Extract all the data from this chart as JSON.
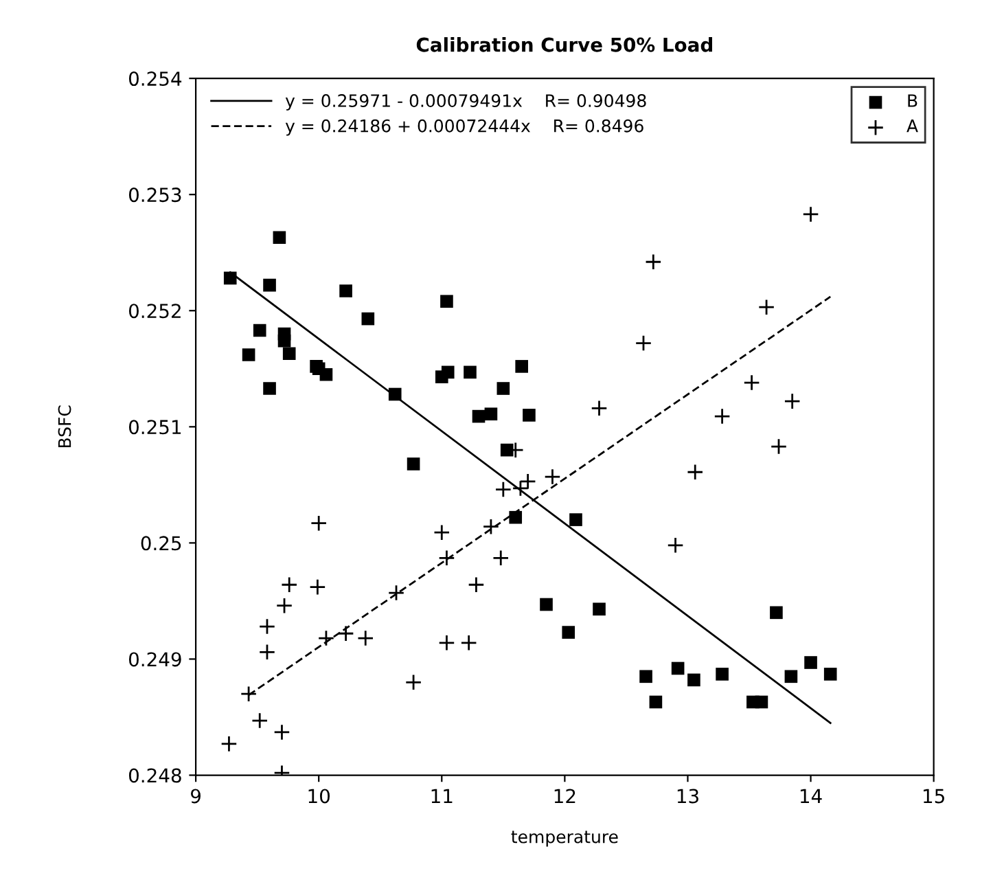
{
  "chart_data": {
    "type": "scatter",
    "title": "Calibration Curve 50% Load",
    "xlabel": "temperature",
    "ylabel": "BSFC",
    "xlim": [
      9,
      15
    ],
    "xticks": [
      9,
      10,
      11,
      12,
      13,
      14,
      15
    ],
    "ylim": [
      0.248,
      0.254
    ],
    "yticks": [
      0.248,
      0.249,
      0.25,
      0.251,
      0.252,
      0.253,
      0.254
    ],
    "grid": false,
    "legend": "top right",
    "series": [
      {
        "name": "B",
        "marker": "square",
        "color": "#000000",
        "x": [
          9.28,
          9.43,
          9.52,
          9.6,
          9.6,
          9.68,
          9.72,
          9.72,
          9.76,
          9.98,
          10.0,
          10.06,
          10.22,
          10.4,
          10.62,
          10.77,
          11.0,
          11.04,
          11.05,
          11.23,
          11.3,
          11.4,
          11.5,
          11.53,
          11.6,
          11.65,
          11.71,
          12.09,
          11.85,
          12.03,
          12.28,
          12.66,
          12.74,
          12.92,
          13.05,
          13.28,
          13.53,
          13.6,
          13.72,
          13.84,
          14.0,
          14.16
        ],
        "values": [
          0.25228,
          0.25162,
          0.25183,
          0.25133,
          0.25222,
          0.25263,
          0.2518,
          0.25174,
          0.25163,
          0.25152,
          0.2515,
          0.25145,
          0.25217,
          0.25193,
          0.25128,
          0.25068,
          0.25143,
          0.25208,
          0.25147,
          0.25147,
          0.25109,
          0.25111,
          0.25133,
          0.2508,
          0.25022,
          0.25152,
          0.2511,
          0.2502,
          0.24947,
          0.24923,
          0.24943,
          0.24885,
          0.24863,
          0.24892,
          0.24882,
          0.24887,
          0.24863,
          0.24863,
          0.2494,
          0.24885,
          0.24897,
          0.24887
        ]
      },
      {
        "name": "A",
        "marker": "cross",
        "color": "#000000",
        "x": [
          9.27,
          9.43,
          9.52,
          9.58,
          9.58,
          9.7,
          9.7,
          9.72,
          9.76,
          9.99,
          10.0,
          10.06,
          10.22,
          10.38,
          10.63,
          10.77,
          11.0,
          11.04,
          11.04,
          11.22,
          11.28,
          11.4,
          11.48,
          11.5,
          11.6,
          11.64,
          11.7,
          11.9,
          12.28,
          12.64,
          12.72,
          12.9,
          13.06,
          13.28,
          13.52,
          13.64,
          13.74,
          13.85,
          14.0
        ],
        "values": [
          0.24827,
          0.2487,
          0.24847,
          0.24906,
          0.24928,
          0.24837,
          0.24802,
          0.24946,
          0.24964,
          0.24962,
          0.25017,
          0.24918,
          0.24922,
          0.24918,
          0.24957,
          0.2488,
          0.25009,
          0.24987,
          0.24914,
          0.24914,
          0.24964,
          0.25014,
          0.24987,
          0.25046,
          0.2508,
          0.25047,
          0.25053,
          0.25057,
          0.25116,
          0.25172,
          0.25242,
          0.24998,
          0.25061,
          0.25109,
          0.25138,
          0.25203,
          0.25083,
          0.25122,
          0.25283
        ]
      },
      {
        "name": "y = 0.25971 - 0.00079491x    R= 0.90498",
        "type": "line",
        "line_style": "solid",
        "marker": "none",
        "color": "#000000",
        "x": [
          9.28,
          14.16
        ],
        "values": [
          0.25233,
          0.24845
        ]
      },
      {
        "name": "y = 0.24186 + 0.00072444x    R= 0.8496",
        "type": "line",
        "line_style": "dashed",
        "marker": "none",
        "color": "#000000",
        "x": [
          9.43,
          14.16
        ],
        "values": [
          0.24869,
          0.25212
        ]
      }
    ]
  }
}
